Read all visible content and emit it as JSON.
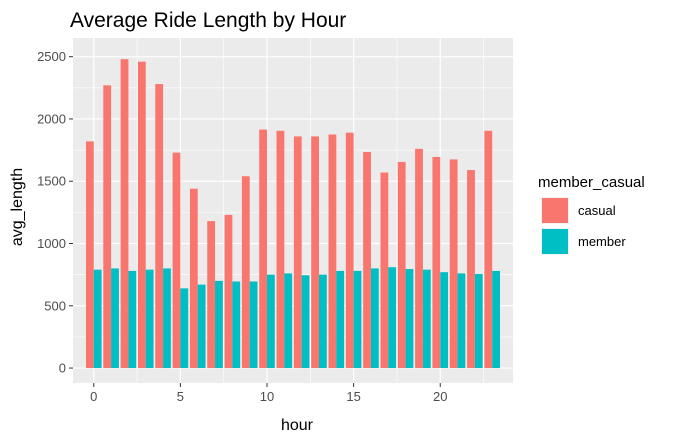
{
  "chart_data": {
    "type": "bar",
    "title": "Average Ride Length by Hour",
    "xlabel": "hour",
    "ylabel": "avg_length",
    "x": [
      0,
      1,
      2,
      3,
      4,
      5,
      6,
      7,
      8,
      9,
      10,
      11,
      12,
      13,
      14,
      15,
      16,
      17,
      18,
      19,
      20,
      21,
      22,
      23
    ],
    "xticks": [
      0,
      5,
      10,
      15,
      20
    ],
    "yticks": [
      0,
      500,
      1000,
      1500,
      2000,
      2500
    ],
    "xlim": [
      -1.2,
      24.2
    ],
    "ylim": [
      -120,
      2650
    ],
    "grid": true,
    "legend_title": "member_casual",
    "legend_position": "right",
    "series": [
      {
        "name": "casual",
        "color": "#F8766D",
        "values": [
          1820,
          2270,
          2480,
          2460,
          2280,
          1730,
          1440,
          1180,
          1230,
          1540,
          1915,
          1905,
          1860,
          1860,
          1875,
          1890,
          1735,
          1570,
          1655,
          1760,
          1695,
          1675,
          1590,
          1905
        ]
      },
      {
        "name": "member",
        "color": "#00BFC4",
        "values": [
          790,
          800,
          780,
          790,
          800,
          640,
          670,
          700,
          695,
          695,
          750,
          760,
          745,
          750,
          780,
          780,
          800,
          810,
          795,
          790,
          770,
          760,
          755,
          780
        ]
      }
    ]
  }
}
